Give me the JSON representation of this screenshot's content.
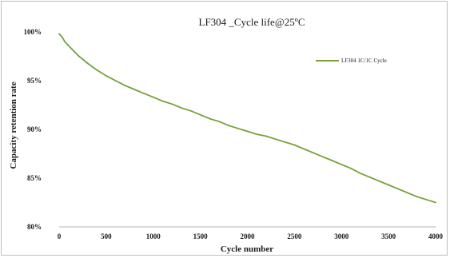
{
  "chart_data": {
    "type": "line",
    "title": "LF304 _Cycle life@25ºC",
    "xlabel": "Cycle number",
    "ylabel": "Capacity retention rate",
    "xlim": [
      0,
      4000
    ],
    "ylim": [
      80,
      100
    ],
    "x_ticks": [
      0,
      500,
      1000,
      1500,
      2000,
      2500,
      3000,
      3500,
      4000
    ],
    "x_tick_labels": [
      "0",
      "500",
      "1000",
      "1500",
      "2000",
      "2500",
      "3000",
      "3500",
      "4000"
    ],
    "y_ticks": [
      80,
      85,
      90,
      95,
      100
    ],
    "y_tick_labels": [
      "80%",
      "85%",
      "90%",
      "95%",
      "100%"
    ],
    "grid": false,
    "legend_position": "top-right",
    "series": [
      {
        "name": "LF304 1C/1C Cycle",
        "color": "#77a03a",
        "x": [
          0,
          30,
          60,
          100,
          150,
          200,
          300,
          400,
          500,
          600,
          700,
          800,
          900,
          1000,
          1100,
          1200,
          1300,
          1400,
          1500,
          1600,
          1700,
          1800,
          1900,
          2000,
          2100,
          2200,
          2300,
          2400,
          2500,
          2600,
          2700,
          2800,
          2900,
          3000,
          3100,
          3200,
          3300,
          3400,
          3500,
          3600,
          3700,
          3800,
          3900,
          4000
        ],
        "y": [
          99.8,
          99.5,
          99.0,
          98.6,
          98.1,
          97.6,
          96.8,
          96.1,
          95.5,
          95.0,
          94.5,
          94.1,
          93.7,
          93.3,
          92.9,
          92.6,
          92.2,
          91.9,
          91.5,
          91.1,
          90.8,
          90.4,
          90.1,
          89.8,
          89.5,
          89.3,
          89.0,
          88.7,
          88.4,
          88.0,
          87.6,
          87.2,
          86.8,
          86.4,
          86.0,
          85.5,
          85.1,
          84.7,
          84.3,
          83.9,
          83.5,
          83.1,
          82.8,
          82.5
        ]
      }
    ]
  }
}
